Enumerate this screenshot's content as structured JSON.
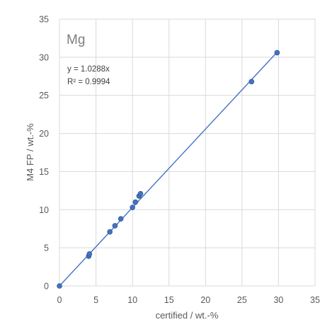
{
  "chart_data": {
    "type": "scatter",
    "title": "Mg",
    "xlabel": "certified / wt.-%",
    "ylabel": "M4 FP / wt.-%",
    "xlim": [
      0,
      35
    ],
    "ylim": [
      0,
      35
    ],
    "xticks": [
      0,
      5,
      10,
      15,
      20,
      25,
      30,
      35
    ],
    "yticks": [
      0,
      5,
      10,
      15,
      20,
      25,
      30,
      35
    ],
    "x_tick_labels": [
      "0",
      "5",
      "10",
      "15",
      "20",
      "25",
      "30",
      "35"
    ],
    "y_tick_labels": [
      "0",
      "5",
      "10",
      "15",
      "20",
      "25",
      "30",
      "35"
    ],
    "grid": true,
    "series": [
      {
        "x": [
          0,
          4.0,
          4.1,
          6.9,
          7.6,
          8.4,
          10.0,
          10.4,
          10.9,
          11.1,
          26.3,
          29.8
        ],
        "y": [
          0,
          3.9,
          4.2,
          7.1,
          7.9,
          8.8,
          10.3,
          11.0,
          11.8,
          12.1,
          26.8,
          30.6
        ],
        "color": "#4472c4"
      }
    ],
    "trendline": {
      "slope": 1.0288,
      "intercept": 0,
      "x_range": [
        0,
        29.8
      ],
      "color": "#4472c4"
    },
    "annotations": [
      "y = 1.0288x",
      "R² = 0.9994"
    ]
  }
}
